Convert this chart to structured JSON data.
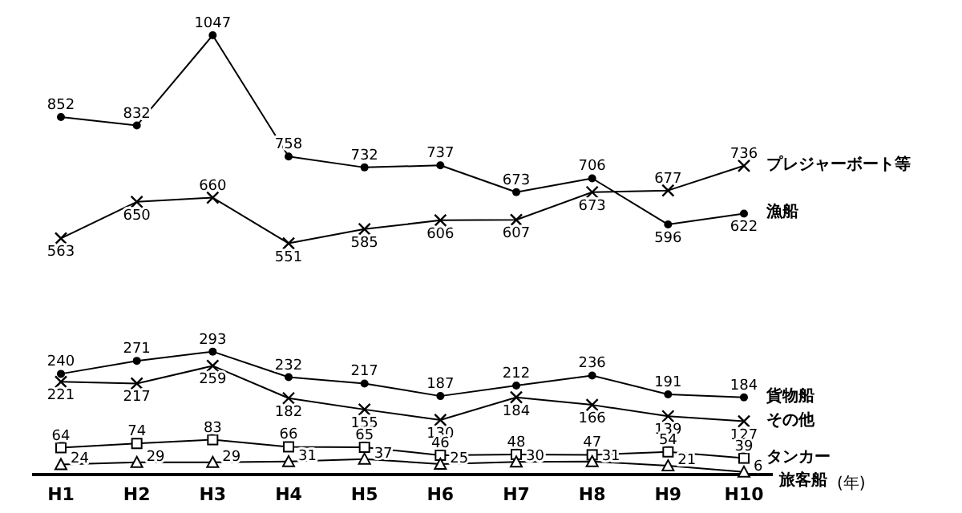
{
  "chart_data": {
    "type": "line",
    "categories": [
      "H1",
      "H2",
      "H3",
      "H4",
      "H5",
      "H6",
      "H7",
      "H8",
      "H9",
      "H10"
    ],
    "xlabel": "(年)",
    "series": [
      {
        "name": "漁船",
        "color": "#000000",
        "marker": "circle",
        "values": [
          852,
          832,
          1047,
          758,
          732,
          737,
          673,
          706,
          596,
          622
        ]
      },
      {
        "name": "プレジャーボート等",
        "color": "#000000",
        "marker": "cross",
        "values": [
          563,
          650,
          660,
          551,
          585,
          606,
          607,
          673,
          677,
          736
        ]
      },
      {
        "name": "貨物船",
        "color": "#000000",
        "marker": "circle",
        "values": [
          240,
          271,
          293,
          232,
          217,
          187,
          212,
          236,
          191,
          184
        ]
      },
      {
        "name": "その他",
        "color": "#000000",
        "marker": "cross",
        "values": [
          221,
          217,
          259,
          182,
          155,
          130,
          184,
          166,
          139,
          127
        ]
      },
      {
        "name": "タンカー",
        "color": "#000000",
        "marker": "square",
        "values": [
          64,
          74,
          83,
          66,
          65,
          46,
          48,
          47,
          54,
          39
        ]
      },
      {
        "name": "旅客船",
        "color": "#000000",
        "marker": "triangle",
        "values": [
          24,
          29,
          29,
          31,
          37,
          25,
          30,
          31,
          21,
          6
        ]
      }
    ],
    "data_labels": true,
    "legend": false,
    "grid": false,
    "line_style": "solid"
  }
}
